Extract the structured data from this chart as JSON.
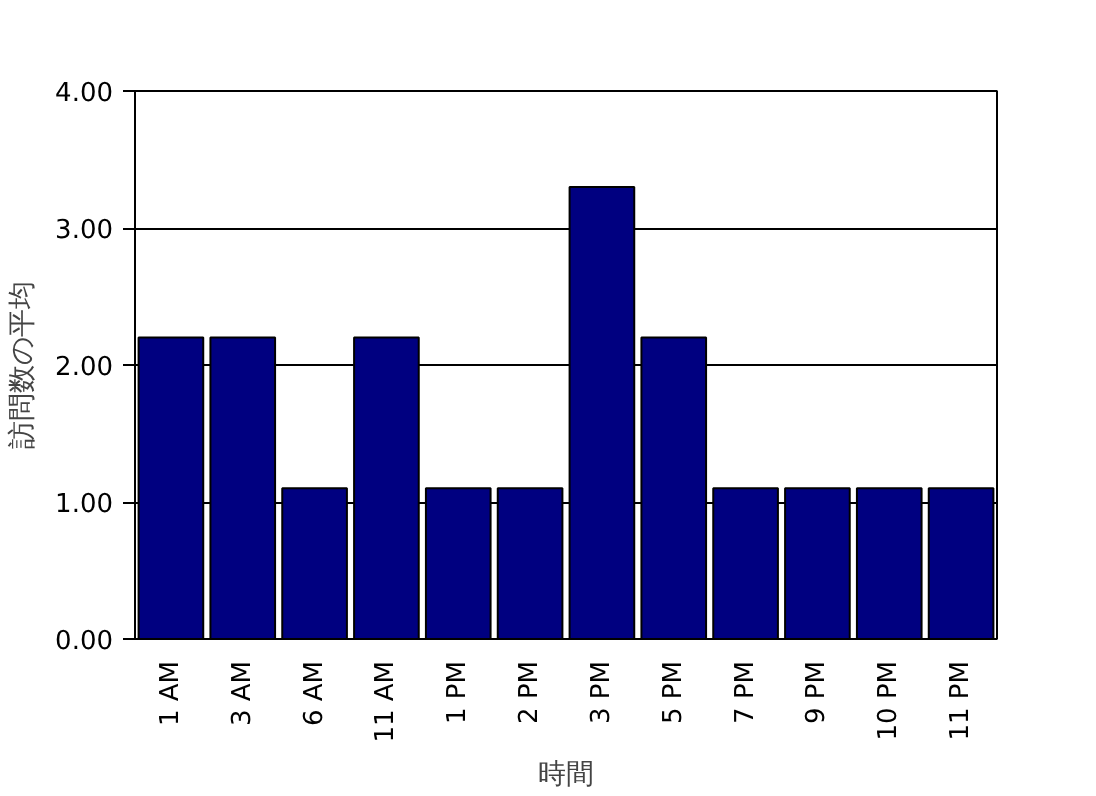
{
  "chart_data": {
    "type": "bar",
    "xlabel": "時間",
    "ylabel": "訪問数の平均",
    "categories": [
      "1 AM",
      "3 AM",
      "6 AM",
      "11 AM",
      "1 PM",
      "2 PM",
      "3 PM",
      "5 PM",
      "7 PM",
      "9 PM",
      "10 PM",
      "11 PM"
    ],
    "values": [
      2.2,
      2.2,
      1.1,
      2.2,
      1.1,
      1.1,
      3.3,
      2.2,
      1.1,
      1.1,
      1.1,
      1.1
    ],
    "color": "#000080",
    "ylim": [
      0,
      4
    ],
    "yticks": [
      {
        "value": 0,
        "label": "0.00"
      },
      {
        "value": 1,
        "label": "1.00"
      },
      {
        "value": 2,
        "label": "2.00"
      },
      {
        "value": 3,
        "label": "3.00"
      },
      {
        "value": 4,
        "label": "4.00"
      }
    ],
    "grid": "y"
  }
}
